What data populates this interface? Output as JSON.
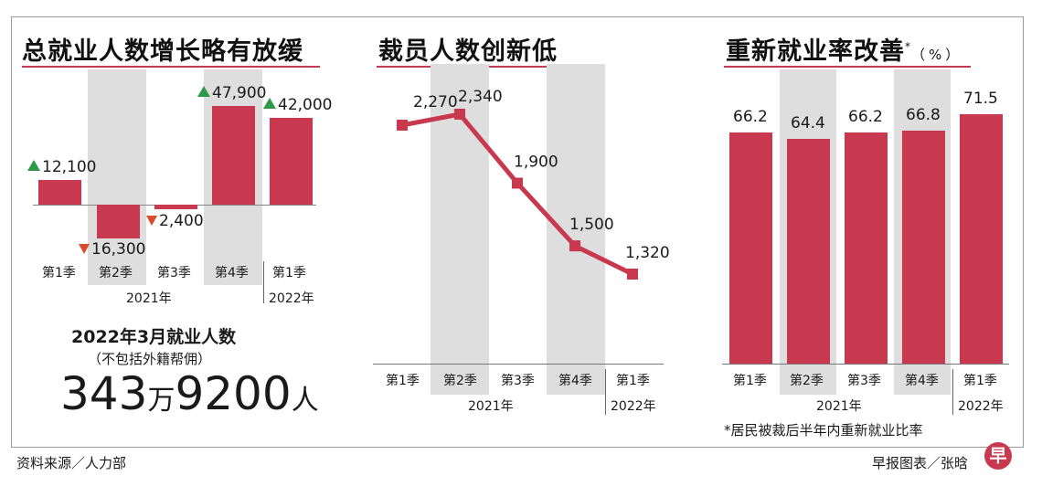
{
  "chart_data": [
    {
      "type": "bar",
      "title": "总就业人数增长略有放缓",
      "categories": [
        "第1季",
        "第2季",
        "第3季",
        "第4季",
        "第1季"
      ],
      "values": [
        12100,
        -16300,
        -2400,
        47900,
        42000
      ],
      "labels": [
        "12,100",
        "16,300",
        "2,400",
        "47,900",
        "42,000"
      ],
      "directions": [
        "up",
        "down",
        "down",
        "up",
        "up"
      ],
      "year_labels": [
        "2021年",
        "2022年"
      ],
      "color": "#c8384f",
      "up_color": "#2e9a49",
      "down_color": "#d94b2b"
    },
    {
      "type": "line",
      "title": "裁员人数创新低",
      "categories": [
        "第1季",
        "第2季",
        "第3季",
        "第4季",
        "第1季"
      ],
      "values": [
        2270,
        2340,
        1900,
        1500,
        1320
      ],
      "labels": [
        "2,270",
        "2,340",
        "1,900",
        "1,500",
        "1,320"
      ],
      "year_labels": [
        "2021年",
        "2022年"
      ],
      "color": "#c8384f"
    },
    {
      "type": "bar",
      "title": "重新就业率改善",
      "title_mark": "*",
      "unit": "（%）",
      "categories": [
        "第1季",
        "第2季",
        "第3季",
        "第4季",
        "第1季"
      ],
      "values": [
        66.2,
        64.4,
        66.2,
        66.8,
        71.5
      ],
      "labels": [
        "66.2",
        "64.4",
        "66.2",
        "66.8",
        "71.5"
      ],
      "year_labels": [
        "2021年",
        "2022年"
      ],
      "footnote": "*居民被裁后半年内重新就业比率",
      "color": "#c8384f"
    }
  ],
  "employment": {
    "heading": "2022年3月就业人数",
    "subheading": "（不包括外籍帮佣）",
    "value_part1": "343",
    "value_unit1": "万",
    "value_part2": "9200",
    "value_unit2": "人"
  },
  "footer": {
    "source": "资料来源／人力部",
    "credit": "早报图表／张",
    "credit_tail": "晗",
    "logo_char": "早"
  }
}
